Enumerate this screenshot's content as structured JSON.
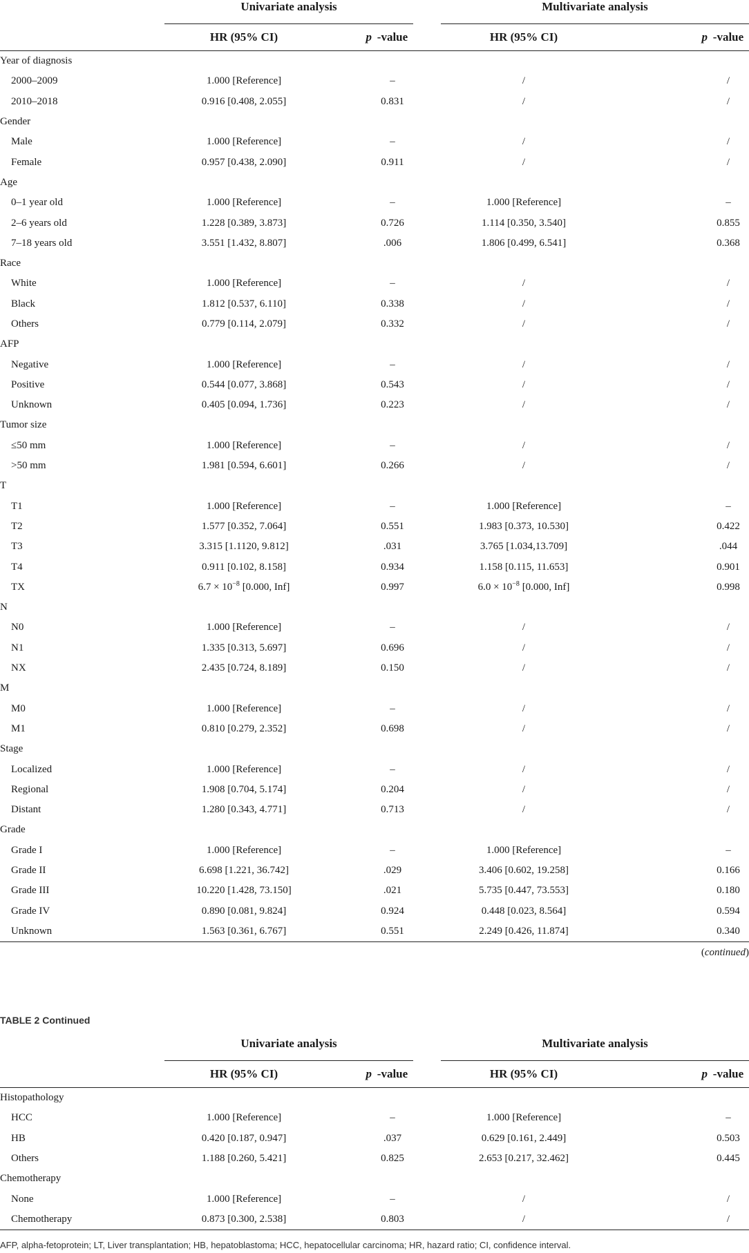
{
  "header": {
    "univariate_title": "Univariate analysis",
    "multivariate_title": "Multivariate analysis",
    "hr_label": "HR (95% CI)",
    "p_italic": "p",
    "p_rest": "-value"
  },
  "table1_rows": [
    {
      "type": "cat",
      "label": "Year of diagnosis"
    },
    {
      "type": "lvl",
      "label": "2000–2009",
      "uni_hr": "1.000 [Reference]",
      "uni_p": "–",
      "multi_hr": "/",
      "multi_p": "/"
    },
    {
      "type": "lvl",
      "label": "2010–2018",
      "uni_hr": "0.916 [0.408, 2.055]",
      "uni_p": "0.831",
      "multi_hr": "/",
      "multi_p": "/"
    },
    {
      "type": "cat",
      "label": "Gender"
    },
    {
      "type": "lvl",
      "label": "Male",
      "uni_hr": "1.000 [Reference]",
      "uni_p": "–",
      "multi_hr": "/",
      "multi_p": "/"
    },
    {
      "type": "lvl",
      "label": "Female",
      "uni_hr": "0.957 [0.438, 2.090]",
      "uni_p": "0.911",
      "multi_hr": "/",
      "multi_p": "/"
    },
    {
      "type": "cat",
      "label": "Age"
    },
    {
      "type": "lvl",
      "label": "0–1 year old",
      "uni_hr": "1.000 [Reference]",
      "uni_p": "–",
      "multi_hr": "1.000 [Reference]",
      "multi_p": "–"
    },
    {
      "type": "lvl",
      "label": "2–6 years old",
      "uni_hr": "1.228 [0.389, 3.873]",
      "uni_p": "0.726",
      "multi_hr": "1.114 [0.350, 3.540]",
      "multi_p": "0.855"
    },
    {
      "type": "lvl",
      "label": "7–18 years old",
      "uni_hr": "3.551 [1.432, 8.807]",
      "uni_p": ".006",
      "multi_hr": "1.806 [0.499, 6.541]",
      "multi_p": "0.368"
    },
    {
      "type": "cat",
      "label": "Race"
    },
    {
      "type": "lvl",
      "label": "White",
      "uni_hr": "1.000 [Reference]",
      "uni_p": "–",
      "multi_hr": "/",
      "multi_p": "/"
    },
    {
      "type": "lvl",
      "label": "Black",
      "uni_hr": "1.812 [0.537, 6.110]",
      "uni_p": "0.338",
      "multi_hr": "/",
      "multi_p": "/"
    },
    {
      "type": "lvl",
      "label": "Others",
      "uni_hr": "0.779 [0.114, 2.079]",
      "uni_p": "0.332",
      "multi_hr": "/",
      "multi_p": "/"
    },
    {
      "type": "cat",
      "label": "AFP"
    },
    {
      "type": "lvl",
      "label": "Negative",
      "uni_hr": "1.000 [Reference]",
      "uni_p": "–",
      "multi_hr": "/",
      "multi_p": "/"
    },
    {
      "type": "lvl",
      "label": "Positive",
      "uni_hr": "0.544 [0.077, 3.868]",
      "uni_p": "0.543",
      "multi_hr": "/",
      "multi_p": "/"
    },
    {
      "type": "lvl",
      "label": "Unknown",
      "uni_hr": "0.405 [0.094, 1.736]",
      "uni_p": "0.223",
      "multi_hr": "/",
      "multi_p": "/"
    },
    {
      "type": "cat",
      "label": "Tumor size"
    },
    {
      "type": "lvl",
      "label": "≤50 mm",
      "uni_hr": "1.000 [Reference]",
      "uni_p": "–",
      "multi_hr": "/",
      "multi_p": "/"
    },
    {
      "type": "lvl",
      "label": ">50 mm",
      "uni_hr": "1.981 [0.594, 6.601]",
      "uni_p": "0.266",
      "multi_hr": "/",
      "multi_p": "/"
    },
    {
      "type": "cat",
      "label": "T"
    },
    {
      "type": "lvl",
      "label": "T1",
      "uni_hr": "1.000 [Reference]",
      "uni_p": "–",
      "multi_hr": "1.000 [Reference]",
      "multi_p": "–"
    },
    {
      "type": "lvl",
      "label": "T2",
      "uni_hr": "1.577 [0.352, 7.064]",
      "uni_p": "0.551",
      "multi_hr": "1.983 [0.373, 10.530]",
      "multi_p": "0.422"
    },
    {
      "type": "lvl",
      "label": "T3",
      "uni_hr": "3.315 [1.1120, 9.812]",
      "uni_p": ".031",
      "multi_hr": "3.765 [1.034,13.709]",
      "multi_p": ".044"
    },
    {
      "type": "lvl",
      "label": "T4",
      "uni_hr": "0.911 [0.102, 8.158]",
      "uni_p": "0.934",
      "multi_hr": "1.158 [0.115, 11.653]",
      "multi_p": "0.901"
    },
    {
      "type": "lvl",
      "label": "TX",
      "uni_hr": "6.7 × 10",
      "uni_hr_sup": "−8",
      "uni_hr_tail": " [0.000, Inf]",
      "uni_p": "0.997",
      "multi_hr": "6.0 × 10",
      "multi_hr_sup": "−8",
      "multi_hr_tail": " [0.000, Inf]",
      "multi_p": "0.998"
    },
    {
      "type": "cat",
      "label": "N"
    },
    {
      "type": "lvl",
      "label": "N0",
      "uni_hr": "1.000 [Reference]",
      "uni_p": "–",
      "multi_hr": "/",
      "multi_p": "/"
    },
    {
      "type": "lvl",
      "label": "N1",
      "uni_hr": "1.335 [0.313, 5.697]",
      "uni_p": "0.696",
      "multi_hr": "/",
      "multi_p": "/"
    },
    {
      "type": "lvl",
      "label": "NX",
      "uni_hr": "2.435 [0.724, 8.189]",
      "uni_p": "0.150",
      "multi_hr": "/",
      "multi_p": "/"
    },
    {
      "type": "cat",
      "label": "M"
    },
    {
      "type": "lvl",
      "label": "M0",
      "uni_hr": "1.000 [Reference]",
      "uni_p": "–",
      "multi_hr": "/",
      "multi_p": "/"
    },
    {
      "type": "lvl",
      "label": "M1",
      "uni_hr": "0.810 [0.279, 2.352]",
      "uni_p": "0.698",
      "multi_hr": "/",
      "multi_p": "/"
    },
    {
      "type": "cat",
      "label": "Stage"
    },
    {
      "type": "lvl",
      "label": "Localized",
      "uni_hr": "1.000 [Reference]",
      "uni_p": "–",
      "multi_hr": "/",
      "multi_p": "/"
    },
    {
      "type": "lvl",
      "label": "Regional",
      "uni_hr": "1.908 [0.704, 5.174]",
      "uni_p": "0.204",
      "multi_hr": "/",
      "multi_p": "/"
    },
    {
      "type": "lvl",
      "label": "Distant",
      "uni_hr": "1.280 [0.343, 4.771]",
      "uni_p": "0.713",
      "multi_hr": "/",
      "multi_p": "/"
    },
    {
      "type": "cat",
      "label": "Grade"
    },
    {
      "type": "lvl",
      "label": "Grade I",
      "uni_hr": "1.000 [Reference]",
      "uni_p": "–",
      "multi_hr": "1.000 [Reference]",
      "multi_p": "–"
    },
    {
      "type": "lvl",
      "label": "Grade II",
      "uni_hr": "6.698 [1.221, 36.742]",
      "uni_p": ".029",
      "multi_hr": "3.406 [0.602, 19.258]",
      "multi_p": "0.166"
    },
    {
      "type": "lvl",
      "label": "Grade III",
      "uni_hr": "10.220 [1.428, 73.150]",
      "uni_p": ".021",
      "multi_hr": "5.735 [0.447, 73.553]",
      "multi_p": "0.180"
    },
    {
      "type": "lvl",
      "label": "Grade IV",
      "uni_hr": "0.890 [0.081, 9.824]",
      "uni_p": "0.924",
      "multi_hr": "0.448 [0.023, 8.564]",
      "multi_p": "0.594"
    },
    {
      "type": "lvl",
      "label": "Unknown",
      "uni_hr": "1.563 [0.361, 6.767]",
      "uni_p": "0.551",
      "multi_hr": "2.249 [0.426, 11.874]",
      "multi_p": "0.340"
    }
  ],
  "continued_label": "continued",
  "caption": {
    "table": "TABLE 2",
    "suffix": "Continued"
  },
  "table2_rows": [
    {
      "type": "cat",
      "label": "Histopathology"
    },
    {
      "type": "lvl",
      "label": "HCC",
      "uni_hr": "1.000 [Reference]",
      "uni_p": "–",
      "multi_hr": "1.000 [Reference]",
      "multi_p": "–"
    },
    {
      "type": "lvl",
      "label": "HB",
      "uni_hr": "0.420 [0.187, 0.947]",
      "uni_p": ".037",
      "multi_hr": "0.629 [0.161, 2.449]",
      "multi_p": "0.503"
    },
    {
      "type": "lvl",
      "label": "Others",
      "uni_hr": "1.188 [0.260, 5.421]",
      "uni_p": "0.825",
      "multi_hr": "2.653 [0.217, 32.462]",
      "multi_p": "0.445"
    },
    {
      "type": "cat",
      "label": "Chemotherapy"
    },
    {
      "type": "lvl",
      "label": "None",
      "uni_hr": "1.000 [Reference]",
      "uni_p": "–",
      "multi_hr": "/",
      "multi_p": "/"
    },
    {
      "type": "lvl",
      "label": "Chemotherapy",
      "uni_hr": "0.873 [0.300, 2.538]",
      "uni_p": "0.803",
      "multi_hr": "/",
      "multi_p": "/"
    }
  ],
  "footnote": "AFP, alpha-fetoprotein; LT, Liver transplantation; HB, hepatoblastoma; HCC, hepatocellular carcinoma; HR, hazard ratio; CI, confidence interval."
}
